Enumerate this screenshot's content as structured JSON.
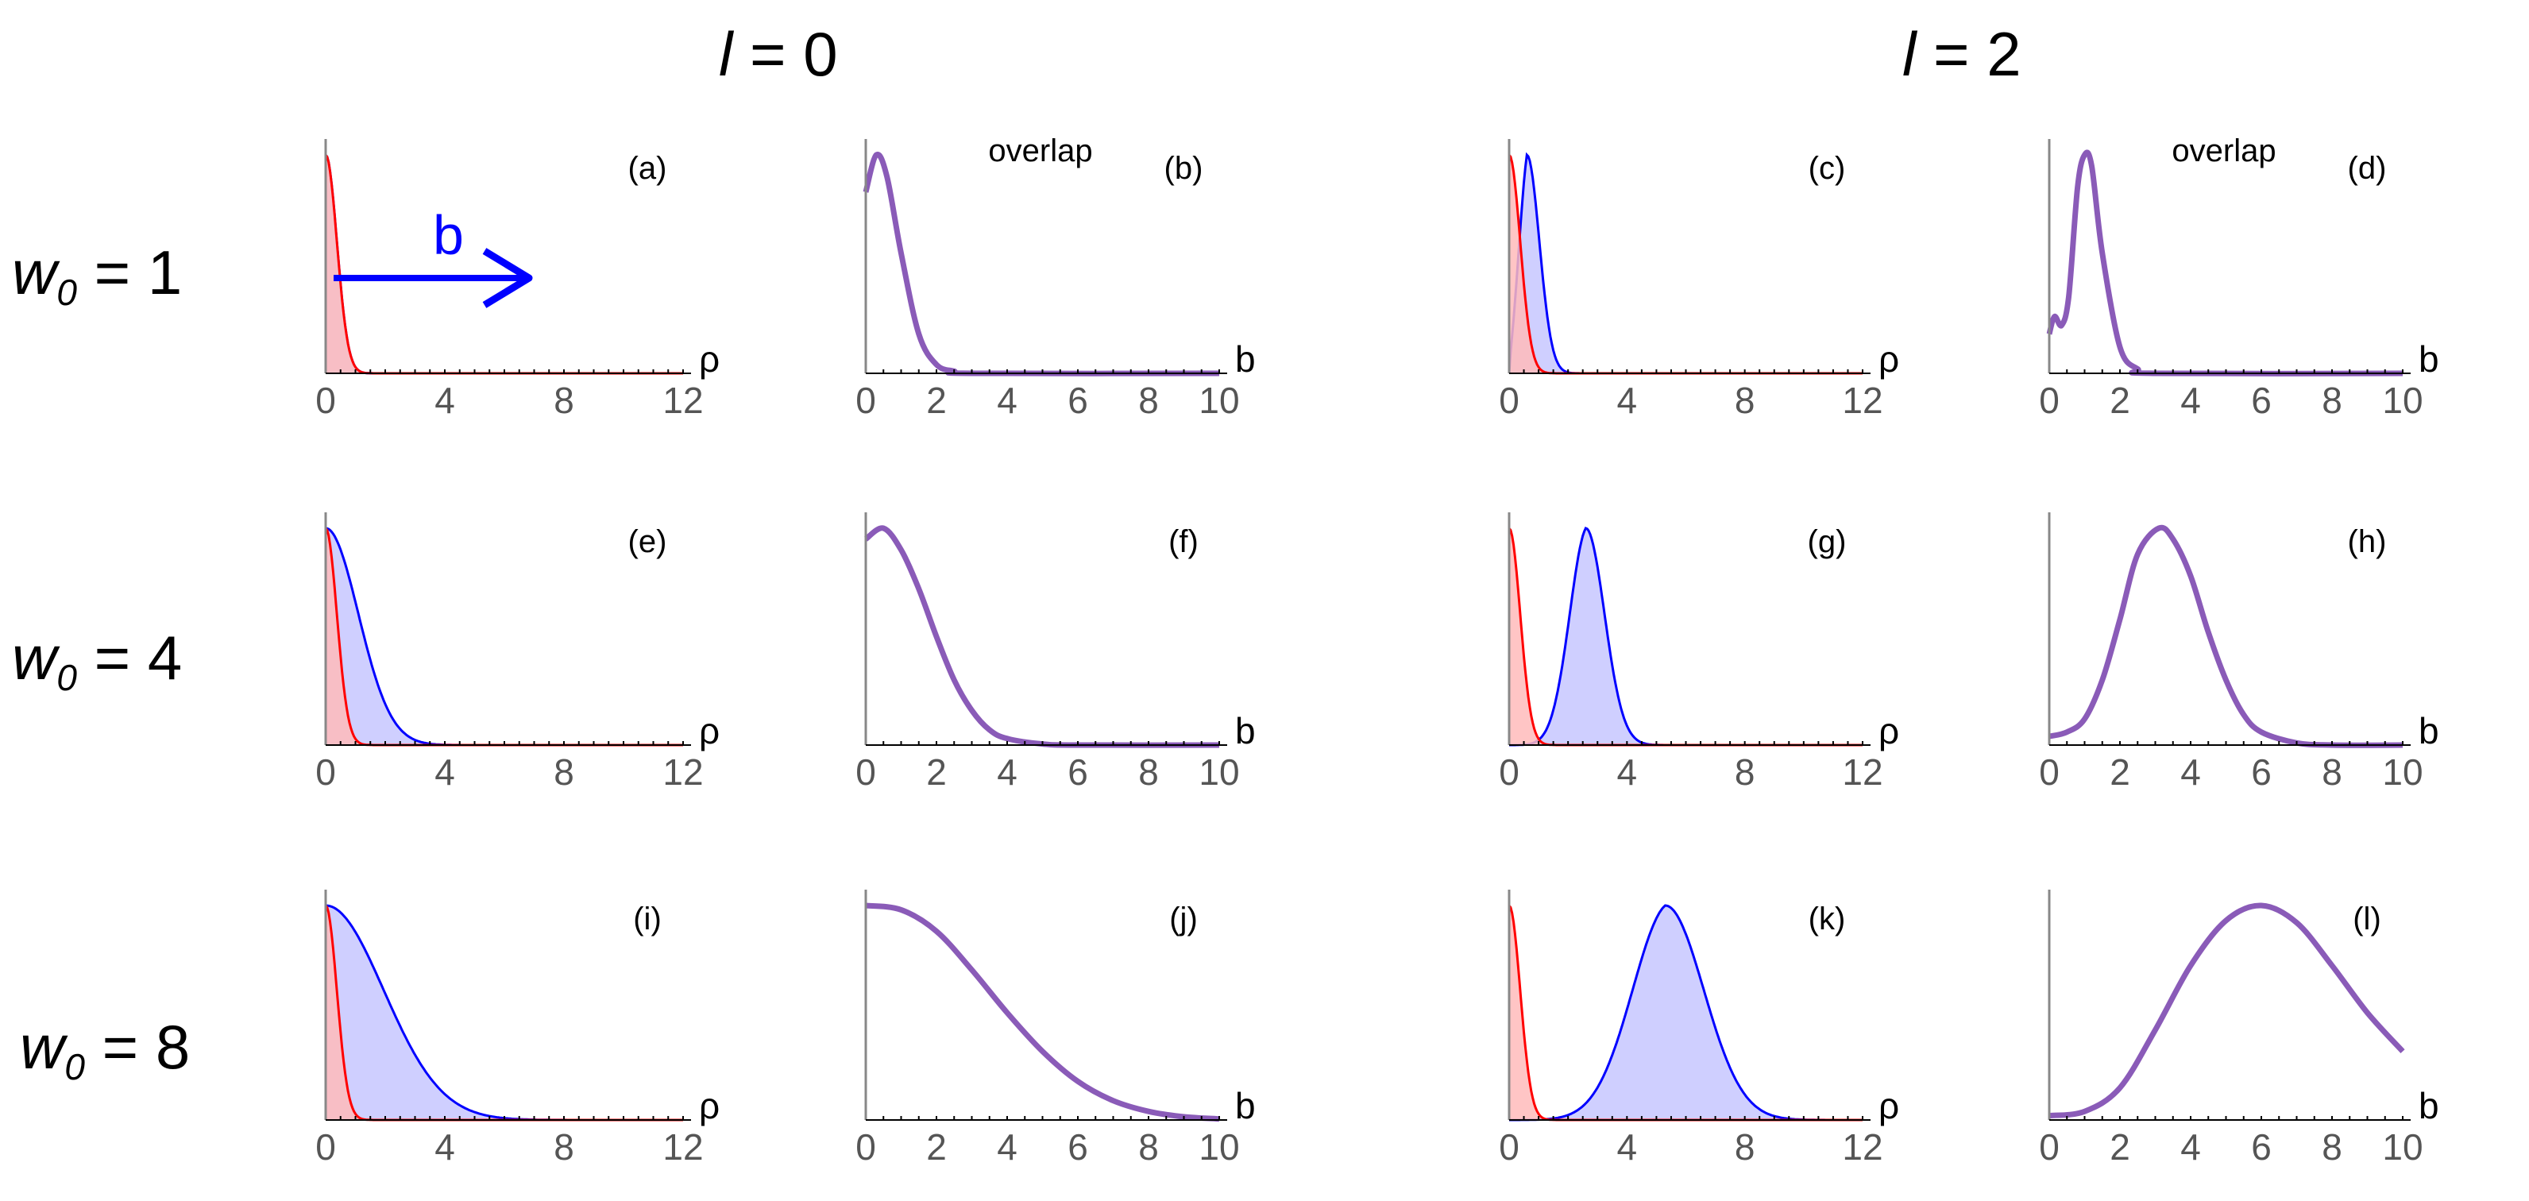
{
  "header": {
    "col_left": {
      "var": "l",
      "eq": " = 0"
    },
    "col_right": {
      "var": "l",
      "eq": " = 2"
    }
  },
  "rows": [
    {
      "var": "w",
      "sub": "0",
      "eq": " = 1"
    },
    {
      "var": "w",
      "sub": "0",
      "eq": " = 4"
    },
    {
      "var": "w",
      "sub": "0",
      "eq": " = 8"
    }
  ],
  "annotation": {
    "text": "b",
    "color": "#0000ff"
  },
  "overlap_label": "overlap",
  "colors": {
    "blue": "#0000ff",
    "blue_fill": "#ccccff",
    "red": "#ff0000",
    "red_fill": "#ffbbbb",
    "purple": "#8a5bb8",
    "overlap_area": "#b080b0"
  },
  "chart_data": [
    {
      "panel": "(a)",
      "type": "area",
      "l": 0,
      "w0": 1,
      "xlabel": "ρ",
      "xlim": [
        0,
        12
      ],
      "xticks": [
        "0",
        "4",
        "8",
        "12"
      ],
      "series": [
        {
          "color": "blue",
          "curve": "gaussian",
          "center": 0,
          "width": 0.53
        },
        {
          "color": "red",
          "curve": "gaussian",
          "center": 0,
          "width": 0.53
        }
      ]
    },
    {
      "panel": "(b)",
      "type": "line",
      "title": "overlap",
      "xlabel": "b",
      "xlim": [
        0,
        10
      ],
      "xticks": [
        "0",
        "2",
        "4",
        "6",
        "8",
        "10"
      ],
      "points": [
        [
          0,
          0.83
        ],
        [
          0.3,
          1.0
        ],
        [
          0.6,
          0.9
        ],
        [
          1.0,
          0.55
        ],
        [
          1.5,
          0.18
        ],
        [
          2.0,
          0.04
        ],
        [
          2.5,
          0.01
        ],
        [
          3,
          0
        ],
        [
          10,
          0
        ]
      ]
    },
    {
      "panel": "(c)",
      "type": "area",
      "l": 2,
      "w0": 1,
      "xlabel": "ρ",
      "xlim": [
        0,
        12
      ],
      "xticks": [
        "0",
        "4",
        "8",
        "12"
      ],
      "series": [
        {
          "color": "blue",
          "curve": "ring",
          "peak": 0.6,
          "width": 0.6
        },
        {
          "color": "red",
          "curve": "gaussian",
          "center": 0,
          "width": 0.53
        }
      ]
    },
    {
      "panel": "(d)",
      "type": "line",
      "title": "overlap",
      "xlabel": "b",
      "xlim": [
        0,
        10
      ],
      "xticks": [
        "0",
        "2",
        "4",
        "6",
        "8",
        "10"
      ],
      "points": [
        [
          0,
          0.18
        ],
        [
          0.15,
          0.26
        ],
        [
          0.35,
          0.22
        ],
        [
          0.55,
          0.35
        ],
        [
          0.8,
          0.85
        ],
        [
          1.0,
          1.0
        ],
        [
          1.2,
          0.95
        ],
        [
          1.5,
          0.55
        ],
        [
          2.0,
          0.12
        ],
        [
          2.5,
          0.02
        ],
        [
          3,
          0
        ],
        [
          10,
          0
        ]
      ]
    },
    {
      "panel": "(e)",
      "type": "area",
      "l": 0,
      "w0": 4,
      "xlabel": "ρ",
      "xlim": [
        0,
        12
      ],
      "xticks": [
        "0",
        "4",
        "8",
        "12"
      ],
      "series": [
        {
          "color": "blue",
          "curve": "gaussian",
          "center": 0,
          "width": 1.55
        },
        {
          "color": "red",
          "curve": "gaussian",
          "center": 0,
          "width": 0.53
        }
      ]
    },
    {
      "panel": "(f)",
      "type": "line",
      "xlabel": "b",
      "xlim": [
        0,
        10
      ],
      "xticks": [
        "0",
        "2",
        "4",
        "6",
        "8",
        "10"
      ],
      "points": [
        [
          0,
          0.95
        ],
        [
          0.5,
          1.0
        ],
        [
          1,
          0.9
        ],
        [
          1.5,
          0.72
        ],
        [
          2,
          0.5
        ],
        [
          2.5,
          0.3
        ],
        [
          3,
          0.16
        ],
        [
          3.5,
          0.07
        ],
        [
          4,
          0.03
        ],
        [
          5,
          0.005
        ],
        [
          6,
          0
        ],
        [
          10,
          0
        ]
      ]
    },
    {
      "panel": "(g)",
      "type": "area",
      "l": 2,
      "w0": 4,
      "xlabel": "ρ",
      "xlim": [
        0,
        12
      ],
      "xticks": [
        "0",
        "4",
        "8",
        "12"
      ],
      "series": [
        {
          "color": "blue",
          "curve": "ring",
          "peak": 2.6,
          "width": 0.9
        },
        {
          "color": "red",
          "curve": "gaussian",
          "center": 0,
          "width": 0.53
        }
      ]
    },
    {
      "panel": "(h)",
      "type": "line",
      "xlabel": "b",
      "xlim": [
        0,
        10
      ],
      "xticks": [
        "0",
        "2",
        "4",
        "6",
        "8",
        "10"
      ],
      "points": [
        [
          0,
          0.04
        ],
        [
          0.5,
          0.06
        ],
        [
          1,
          0.12
        ],
        [
          1.5,
          0.3
        ],
        [
          2,
          0.58
        ],
        [
          2.5,
          0.88
        ],
        [
          3.1,
          1.0
        ],
        [
          3.5,
          0.95
        ],
        [
          4,
          0.78
        ],
        [
          4.5,
          0.52
        ],
        [
          5,
          0.3
        ],
        [
          5.5,
          0.14
        ],
        [
          6,
          0.06
        ],
        [
          7,
          0.01
        ],
        [
          8,
          0
        ],
        [
          10,
          0
        ]
      ]
    },
    {
      "panel": "(i)",
      "type": "area",
      "l": 0,
      "w0": 8,
      "xlabel": "ρ",
      "xlim": [
        0,
        12
      ],
      "xticks": [
        "0",
        "4",
        "8",
        "12"
      ],
      "series": [
        {
          "color": "blue",
          "curve": "gaussian",
          "center": 0,
          "width": 2.75
        },
        {
          "color": "red",
          "curve": "gaussian",
          "center": 0,
          "width": 0.53
        }
      ]
    },
    {
      "panel": "(j)",
      "type": "line",
      "xlabel": "b",
      "xlim": [
        0,
        10
      ],
      "xticks": [
        "0",
        "2",
        "4",
        "6",
        "8",
        "10"
      ],
      "points": [
        [
          0,
          1.0
        ],
        [
          1,
          0.98
        ],
        [
          2,
          0.88
        ],
        [
          3,
          0.7
        ],
        [
          4,
          0.5
        ],
        [
          5,
          0.32
        ],
        [
          6,
          0.18
        ],
        [
          7,
          0.09
        ],
        [
          8,
          0.04
        ],
        [
          9,
          0.015
        ],
        [
          10,
          0.005
        ]
      ]
    },
    {
      "panel": "(k)",
      "type": "area",
      "l": 2,
      "w0": 8,
      "xlabel": "ρ",
      "xlim": [
        0,
        12
      ],
      "xticks": [
        "0",
        "4",
        "8",
        "12"
      ],
      "series": [
        {
          "color": "blue",
          "curve": "ring",
          "peak": 5.3,
          "width": 1.85
        },
        {
          "color": "red",
          "curve": "gaussian",
          "center": 0,
          "width": 0.53
        }
      ]
    },
    {
      "panel": "(l)",
      "type": "line",
      "xlabel": "b",
      "xlim": [
        0,
        10
      ],
      "xticks": [
        "0",
        "2",
        "4",
        "6",
        "8",
        "10"
      ],
      "points": [
        [
          0,
          0.02
        ],
        [
          1,
          0.04
        ],
        [
          2,
          0.15
        ],
        [
          3,
          0.42
        ],
        [
          4,
          0.72
        ],
        [
          5,
          0.93
        ],
        [
          6,
          1.0
        ],
        [
          7,
          0.92
        ],
        [
          8,
          0.72
        ],
        [
          9,
          0.5
        ],
        [
          10,
          0.32
        ]
      ]
    }
  ]
}
